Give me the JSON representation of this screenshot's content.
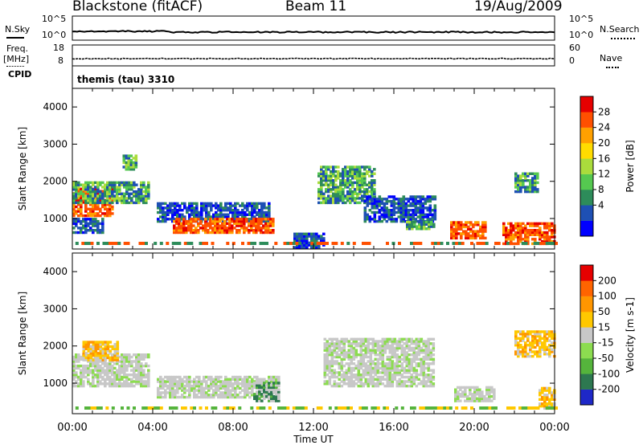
{
  "header": {
    "station": "Blackstone (fitACF)",
    "beam": "Beam 11",
    "date": "19/Aug/2009"
  },
  "noise_panel": {
    "left_label": "N.Sky",
    "right_label": "N.Search",
    "y_ticks_left": [
      "10^5",
      "10^0"
    ],
    "y_ticks_right": [
      "10^5",
      "10^0"
    ]
  },
  "freq_panel": {
    "left_label_line1": "Freq.",
    "left_label_line2": "[MHz]",
    "right_label": "Nave",
    "y_ticks_left": [
      "18",
      "8"
    ],
    "y_ticks_right": [
      "60",
      "0"
    ]
  },
  "cpid_panel": {
    "label": "CPID",
    "text": "themis (tau) 3310"
  },
  "chart_data": [
    {
      "type": "heatmap",
      "name": "power",
      "ylabel": "Slant Range [km]",
      "y_ticks": [
        "4000",
        "3000",
        "2000",
        "1000"
      ],
      "ylim": [
        180,
        4500
      ],
      "xlim": [
        0,
        24
      ],
      "colorbar_label": "Power [dB]",
      "colorbar_ticks": [
        "28",
        "24",
        "20",
        "16",
        "12",
        "8",
        "4"
      ],
      "colorbar_colors": [
        "#0000ff",
        "#1e50b4",
        "#2d8c5a",
        "#55c850",
        "#aadc3c",
        "#ffdc00",
        "#ffa000",
        "#ff5000",
        "#e60000"
      ],
      "regions": [
        {
          "t0": 0.0,
          "t1": 2.0,
          "r0": 1050,
          "r1": 1800,
          "level": "high"
        },
        {
          "t0": 0.0,
          "t1": 3.8,
          "r0": 1400,
          "r1": 2000,
          "level": "mid"
        },
        {
          "t0": 0.0,
          "t1": 1.5,
          "r0": 600,
          "r1": 1000,
          "level": "low"
        },
        {
          "t0": 2.5,
          "t1": 3.2,
          "r0": 2300,
          "r1": 2700,
          "level": "mid"
        },
        {
          "t0": 4.2,
          "t1": 9.8,
          "r0": 900,
          "r1": 1400,
          "level": "low"
        },
        {
          "t0": 5.0,
          "t1": 10.0,
          "r0": 600,
          "r1": 1000,
          "level": "high"
        },
        {
          "t0": 11.0,
          "t1": 12.5,
          "r0": 200,
          "r1": 600,
          "level": "low"
        },
        {
          "t0": 12.2,
          "t1": 15.0,
          "r0": 1400,
          "r1": 2400,
          "level": "mid"
        },
        {
          "t0": 14.5,
          "t1": 18.0,
          "r0": 900,
          "r1": 1600,
          "level": "low"
        },
        {
          "t0": 16.6,
          "t1": 18.0,
          "r0": 700,
          "r1": 900,
          "level": "mid"
        },
        {
          "t0": 18.8,
          "t1": 20.6,
          "r0": 450,
          "r1": 900,
          "level": "high"
        },
        {
          "t0": 21.4,
          "t1": 24.0,
          "r0": 300,
          "r1": 900,
          "level": "high"
        },
        {
          "t0": 22.0,
          "t1": 23.2,
          "r0": 1700,
          "r1": 2200,
          "level": "mid"
        }
      ]
    },
    {
      "type": "heatmap",
      "name": "velocity",
      "ylabel": "Slant Range [km]",
      "y_ticks": [
        "4000",
        "3000",
        "2000",
        "1000"
      ],
      "ylim": [
        180,
        4500
      ],
      "xlim": [
        0,
        24
      ],
      "colorbar_label": "Velocity [m s-1]",
      "colorbar_ticks": [
        "200",
        "100",
        "50",
        "15",
        "-15",
        "-50",
        "-100",
        "-200"
      ],
      "colorbar_colors": [
        "#1e28c8",
        "#2d7850",
        "#55b43c",
        "#8cdc50",
        "#c8c8c8",
        "#ffc800",
        "#ff9600",
        "#ff6400",
        "#e60000"
      ],
      "regions": [
        {
          "t0": 0.0,
          "t1": 3.8,
          "r0": 900,
          "r1": 1800,
          "level": "grey"
        },
        {
          "t0": 0.5,
          "t1": 2.2,
          "r0": 1600,
          "r1": 2100,
          "level": "orange"
        },
        {
          "t0": 4.2,
          "t1": 10.3,
          "r0": 600,
          "r1": 1200,
          "level": "grey"
        },
        {
          "t0": 9.0,
          "t1": 10.3,
          "r0": 500,
          "r1": 1000,
          "level": "green"
        },
        {
          "t0": 12.5,
          "t1": 18.0,
          "r0": 900,
          "r1": 2200,
          "level": "grey"
        },
        {
          "t0": 19.0,
          "t1": 21.0,
          "r0": 500,
          "r1": 900,
          "level": "grey"
        },
        {
          "t0": 22.0,
          "t1": 24.0,
          "r0": 1700,
          "r1": 2400,
          "level": "orange"
        },
        {
          "t0": 23.2,
          "t1": 24.0,
          "r0": 300,
          "r1": 900,
          "level": "orange"
        }
      ]
    }
  ],
  "x_axis": {
    "tick_labels": [
      "00:00",
      "04:00",
      "08:00",
      "12:00",
      "16:00",
      "20:00",
      "00:00"
    ],
    "label": "Time UT"
  }
}
